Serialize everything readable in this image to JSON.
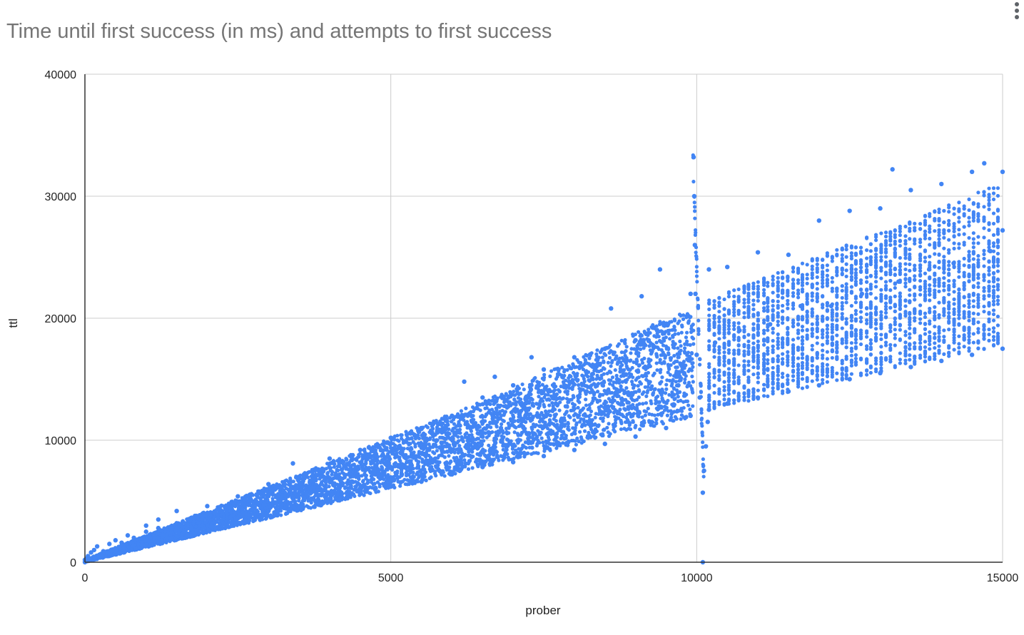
{
  "menu": {
    "icon": "more-vert-icon"
  },
  "chart_data": {
    "type": "scatter",
    "title": "Time until first success (in ms) and attempts to first success",
    "xlabel": "prober",
    "ylabel": "ttl",
    "xlim": [
      0,
      15000
    ],
    "ylim": [
      0,
      40000
    ],
    "x_ticks": [
      "0",
      "5000",
      "10000",
      "15000"
    ],
    "y_ticks": [
      "0",
      "10000",
      "20000",
      "30000",
      "40000"
    ],
    "grid": true,
    "legend": "none",
    "point_color": "#4285f4",
    "series": [
      {
        "points": [
          [
            0,
            0
          ],
          [
            0,
            200
          ],
          [
            30,
            300
          ],
          [
            50,
            500
          ],
          [
            100,
            800
          ],
          [
            150,
            1000
          ],
          [
            200,
            1300
          ],
          [
            300,
            900
          ],
          [
            400,
            1500
          ],
          [
            500,
            1800
          ],
          [
            600,
            1600
          ],
          [
            700,
            2200
          ],
          [
            800,
            2000
          ],
          [
            1000,
            2500
          ],
          [
            1000,
            3000
          ],
          [
            1200,
            2800
          ],
          [
            1200,
            3500
          ],
          [
            1500,
            3200
          ],
          [
            1500,
            4200
          ],
          [
            1800,
            3800
          ],
          [
            2000,
            3400
          ],
          [
            2000,
            4600
          ],
          [
            2200,
            4200
          ],
          [
            2500,
            3600
          ],
          [
            2500,
            5400
          ],
          [
            2800,
            5000
          ],
          [
            3000,
            4200
          ],
          [
            3000,
            6400
          ],
          [
            3200,
            5800
          ],
          [
            3400,
            8100
          ],
          [
            3500,
            4600
          ],
          [
            3500,
            7000
          ],
          [
            3800,
            6200
          ],
          [
            4000,
            5200
          ],
          [
            4000,
            8500
          ],
          [
            4200,
            7600
          ],
          [
            4500,
            5800
          ],
          [
            4500,
            9200
          ],
          [
            4800,
            7000
          ],
          [
            5000,
            6200
          ],
          [
            5000,
            10200
          ],
          [
            5200,
            8800
          ],
          [
            5500,
            6600
          ],
          [
            5500,
            11000
          ],
          [
            5800,
            9400
          ],
          [
            6000,
            7200
          ],
          [
            6000,
            12000
          ],
          [
            6200,
            14800
          ],
          [
            6300,
            10000
          ],
          [
            6500,
            7800
          ],
          [
            6500,
            13500
          ],
          [
            6700,
            15200
          ],
          [
            6800,
            11000
          ],
          [
            7000,
            8200
          ],
          [
            7000,
            14500
          ],
          [
            7200,
            12000
          ],
          [
            7300,
            16800
          ],
          [
            7500,
            8700
          ],
          [
            7500,
            15800
          ],
          [
            7700,
            13000
          ],
          [
            8000,
            9200
          ],
          [
            8000,
            16800
          ],
          [
            8200,
            14000
          ],
          [
            8500,
            9700
          ],
          [
            8500,
            17500
          ],
          [
            8600,
            20800
          ],
          [
            8700,
            15000
          ],
          [
            9000,
            10300
          ],
          [
            9000,
            18200
          ],
          [
            9100,
            21800
          ],
          [
            9200,
            16000
          ],
          [
            9400,
            24000
          ],
          [
            9500,
            11000
          ],
          [
            9500,
            19500
          ],
          [
            9700,
            14500
          ],
          [
            9900,
            12000
          ],
          [
            9900,
            22000
          ],
          [
            9950,
            33200
          ],
          [
            9960,
            30000
          ],
          [
            9970,
            26000
          ],
          [
            9980,
            22000
          ],
          [
            10000,
            17000
          ],
          [
            10050,
            13500
          ],
          [
            10100,
            5700
          ],
          [
            10120,
            7500
          ],
          [
            10150,
            9500
          ],
          [
            10180,
            11500
          ],
          [
            10100,
            0
          ],
          [
            10200,
            12500
          ],
          [
            10200,
            24000
          ],
          [
            10300,
            18000
          ],
          [
            10500,
            13000
          ],
          [
            10500,
            24200
          ],
          [
            10700,
            19000
          ],
          [
            11000,
            13500
          ],
          [
            11000,
            25400
          ],
          [
            11200,
            19500
          ],
          [
            11500,
            14000
          ],
          [
            11500,
            25200
          ],
          [
            11700,
            21000
          ],
          [
            12000,
            14500
          ],
          [
            12000,
            28000
          ],
          [
            12200,
            21000
          ],
          [
            12500,
            15000
          ],
          [
            12500,
            28800
          ],
          [
            12700,
            22000
          ],
          [
            13000,
            15500
          ],
          [
            13000,
            29000
          ],
          [
            13200,
            32200
          ],
          [
            13300,
            23000
          ],
          [
            13500,
            16000
          ],
          [
            13500,
            30500
          ],
          [
            13800,
            24000
          ],
          [
            14000,
            16500
          ],
          [
            14000,
            31000
          ],
          [
            14200,
            24500
          ],
          [
            14500,
            17000
          ],
          [
            14500,
            32000
          ],
          [
            14700,
            32700
          ],
          [
            14800,
            25500
          ],
          [
            15000,
            17500
          ],
          [
            15000,
            32000
          ],
          [
            15000,
            27200
          ]
        ]
      }
    ]
  }
}
